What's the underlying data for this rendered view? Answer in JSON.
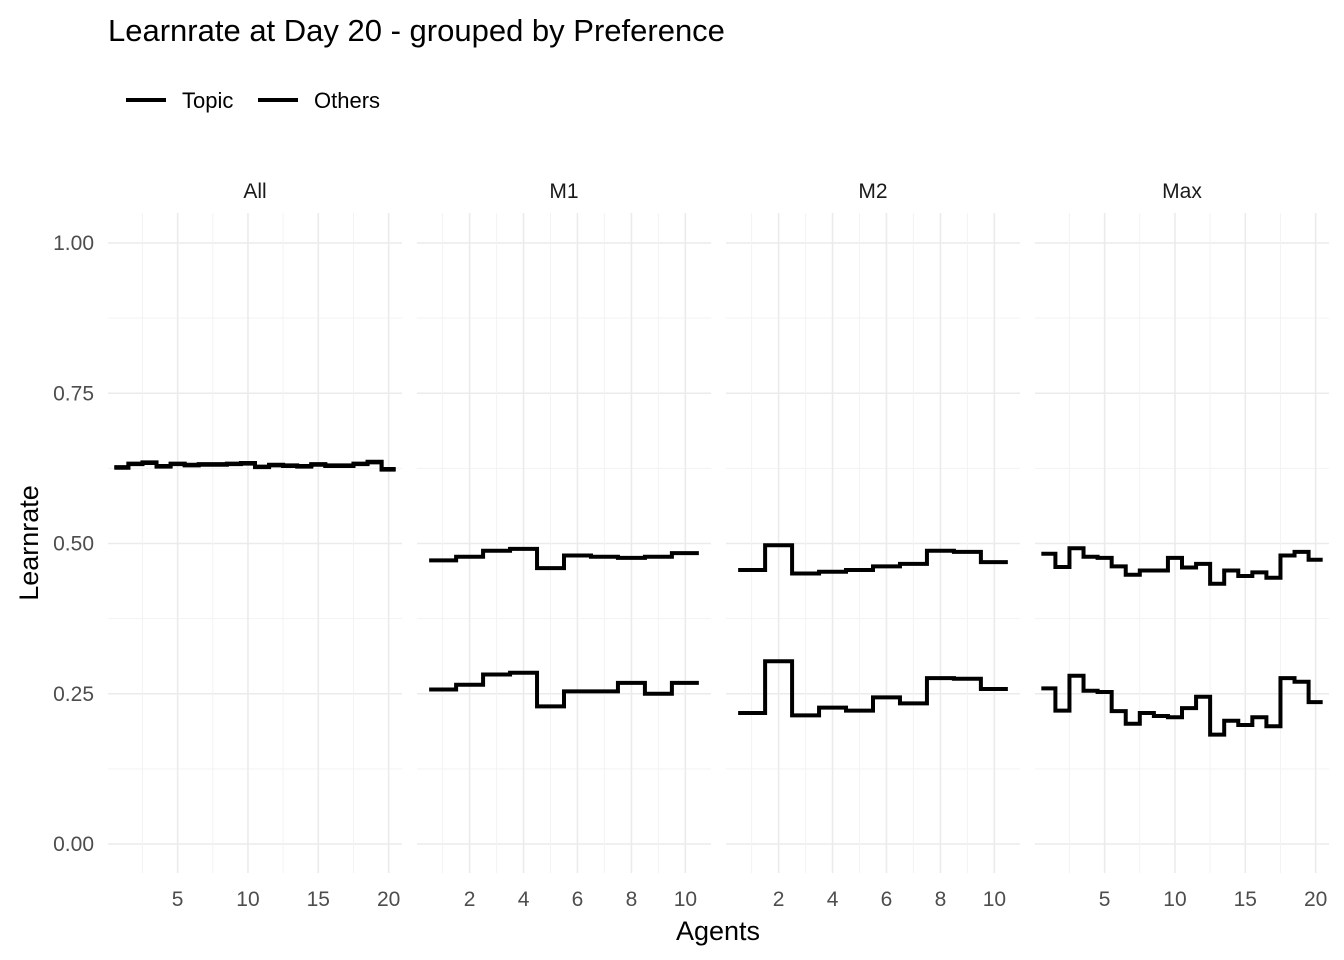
{
  "chart_data": {
    "type": "line",
    "step": true,
    "title": "Learnrate at Day 20 - grouped by Preference",
    "xlabel": "Agents",
    "ylabel": "Learnrate",
    "ylim": [
      0,
      1
    ],
    "yticks": [
      "0.00",
      "0.25",
      "0.50",
      "0.75",
      "1.00"
    ],
    "grid": true,
    "legend": {
      "position": "top-left",
      "entries": [
        "Topic",
        "Others"
      ],
      "color": "#000000"
    },
    "facets": [
      {
        "label": "All",
        "xlim": [
          1,
          20
        ],
        "xticks": [
          5,
          10,
          15,
          20
        ],
        "series": [
          {
            "name": "Topic",
            "x": [
              1,
              2,
              3,
              4,
              5,
              6,
              7,
              8,
              9,
              10,
              11,
              12,
              13,
              14,
              15,
              16,
              17,
              18,
              19,
              20
            ],
            "values": [
              0.627,
              0.633,
              0.635,
              0.629,
              0.633,
              0.631,
              0.632,
              0.632,
              0.633,
              0.634,
              0.628,
              0.631,
              0.63,
              0.629,
              0.632,
              0.63,
              0.63,
              0.633,
              0.636,
              0.624
            ]
          },
          {
            "name": "Others",
            "x": [
              1,
              2,
              3,
              4,
              5,
              6,
              7,
              8,
              9,
              10,
              11,
              12,
              13,
              14,
              15,
              16,
              17,
              18,
              19,
              20
            ],
            "values": [
              0.626,
              0.632,
              0.634,
              0.628,
              0.632,
              0.63,
              0.631,
              0.631,
              0.632,
              0.633,
              0.627,
              0.63,
              0.629,
              0.628,
              0.631,
              0.629,
              0.629,
              0.632,
              0.635,
              0.623
            ]
          }
        ]
      },
      {
        "label": "M1",
        "xlim": [
          1,
          10
        ],
        "xticks": [
          2,
          4,
          6,
          8,
          10
        ],
        "series": [
          {
            "name": "Topic",
            "x": [
              1,
              2,
              3,
              4,
              5,
              6,
              7,
              8,
              9,
              10
            ],
            "values": [
              0.472,
              0.478,
              0.488,
              0.491,
              0.459,
              0.48,
              0.478,
              0.476,
              0.478,
              0.484
            ]
          },
          {
            "name": "Others",
            "x": [
              1,
              2,
              3,
              4,
              5,
              6,
              7,
              8,
              9,
              10
            ],
            "values": [
              0.257,
              0.265,
              0.282,
              0.285,
              0.229,
              0.254,
              0.254,
              0.268,
              0.25,
              0.268
            ]
          }
        ]
      },
      {
        "label": "M2",
        "xlim": [
          1,
          10
        ],
        "xticks": [
          2,
          4,
          6,
          8,
          10
        ],
        "series": [
          {
            "name": "Topic",
            "x": [
              1,
              2,
              3,
              4,
              5,
              6,
              7,
              8,
              9,
              10
            ],
            "values": [
              0.456,
              0.497,
              0.45,
              0.453,
              0.456,
              0.462,
              0.466,
              0.488,
              0.486,
              0.469
            ]
          },
          {
            "name": "Others",
            "x": [
              1,
              2,
              3,
              4,
              5,
              6,
              7,
              8,
              9,
              10
            ],
            "values": [
              0.218,
              0.304,
              0.214,
              0.227,
              0.222,
              0.244,
              0.234,
              0.276,
              0.275,
              0.258
            ]
          }
        ]
      },
      {
        "label": "Max",
        "xlim": [
          1,
          20
        ],
        "xticks": [
          5,
          10,
          15,
          20
        ],
        "series": [
          {
            "name": "Topic",
            "x": [
              1,
              2,
              3,
              4,
              5,
              6,
              7,
              8,
              9,
              10,
              11,
              12,
              13,
              14,
              15,
              16,
              17,
              18,
              19,
              20
            ],
            "values": [
              0.483,
              0.461,
              0.492,
              0.478,
              0.476,
              0.462,
              0.448,
              0.455,
              0.455,
              0.476,
              0.46,
              0.466,
              0.433,
              0.455,
              0.446,
              0.452,
              0.443,
              0.48,
              0.486,
              0.473
            ]
          },
          {
            "name": "Others",
            "x": [
              1,
              2,
              3,
              4,
              5,
              6,
              7,
              8,
              9,
              10,
              11,
              12,
              13,
              14,
              15,
              16,
              17,
              18,
              19,
              20
            ],
            "values": [
              0.259,
              0.222,
              0.28,
              0.255,
              0.253,
              0.221,
              0.2,
              0.218,
              0.213,
              0.211,
              0.226,
              0.245,
              0.182,
              0.205,
              0.198,
              0.211,
              0.196,
              0.276,
              0.27,
              0.236
            ]
          }
        ]
      }
    ]
  }
}
